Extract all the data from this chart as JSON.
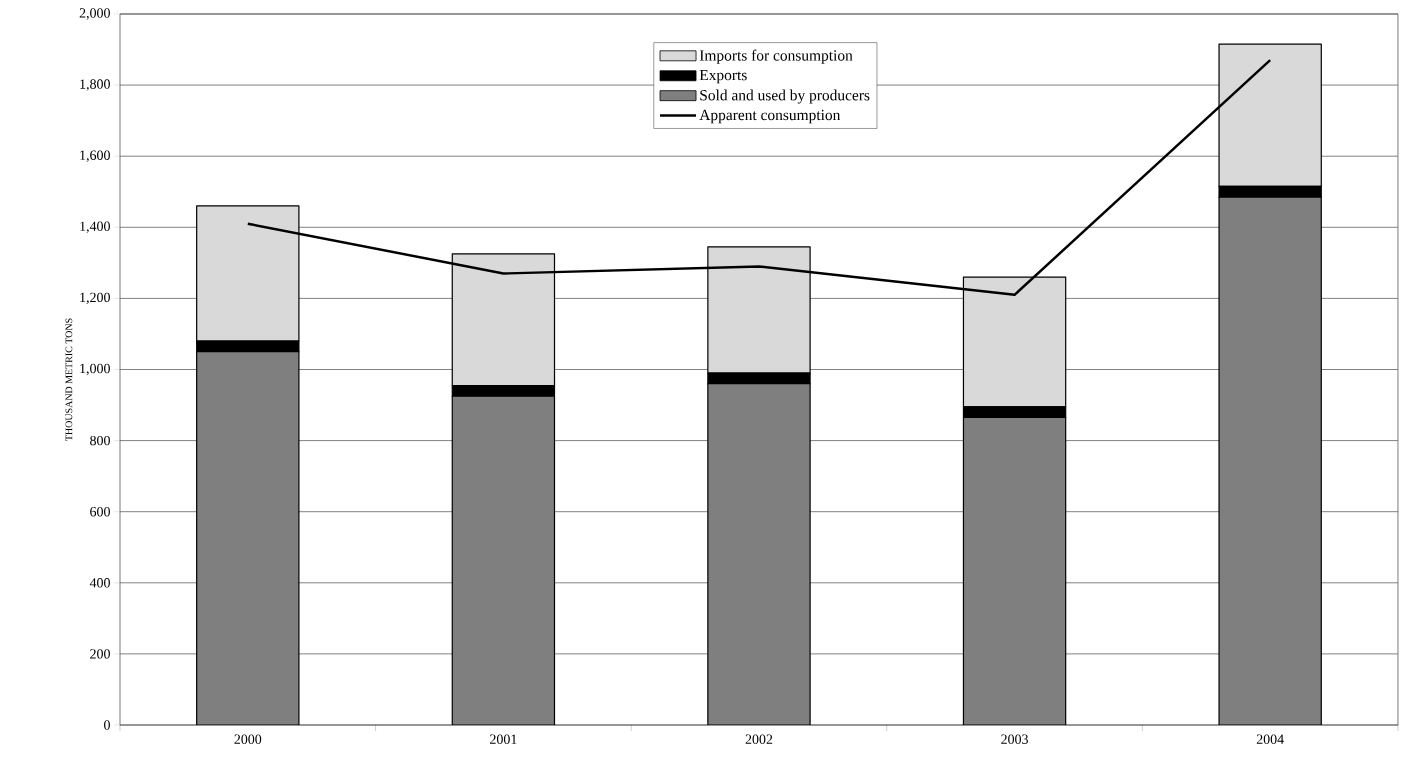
{
  "chart_data": {
    "type": "bar",
    "stacked": true,
    "ylabel": "THOUSAND METRIC TONS",
    "categories": [
      "2000",
      "2001",
      "2002",
      "2003",
      "2004"
    ],
    "series": [
      {
        "name": "Sold and used by producers",
        "color": "#7f7f7f",
        "values": [
          1050,
          925,
          960,
          865,
          1485
        ]
      },
      {
        "name": "Exports",
        "color": "#000000",
        "values": [
          30,
          30,
          30,
          30,
          30
        ]
      },
      {
        "name": "Imports for consumption",
        "color": "#d9d9d9",
        "values": [
          380,
          370,
          355,
          365,
          400
        ]
      },
      {
        "name": "Apparent consumption",
        "type": "line",
        "color": "#000000",
        "values": [
          1410,
          1270,
          1290,
          1210,
          1870
        ]
      }
    ],
    "ylim": [
      0,
      2000
    ],
    "yticks": [
      {
        "value": 0,
        "label": "0"
      },
      {
        "value": 200,
        "label": "200"
      },
      {
        "value": 400,
        "label": "400"
      },
      {
        "value": 600,
        "label": "600"
      },
      {
        "value": 800,
        "label": "800"
      },
      {
        "value": 1000,
        "label": "1,000"
      },
      {
        "value": 1200,
        "label": "1,200"
      },
      {
        "value": 1400,
        "label": "1,400"
      },
      {
        "value": 1600,
        "label": "1,600"
      },
      {
        "value": 1800,
        "label": "1,800"
      },
      {
        "value": 2000,
        "label": "2,000"
      }
    ],
    "grid": "y",
    "legend": "top",
    "marker": "none",
    "line_style": "solid"
  }
}
